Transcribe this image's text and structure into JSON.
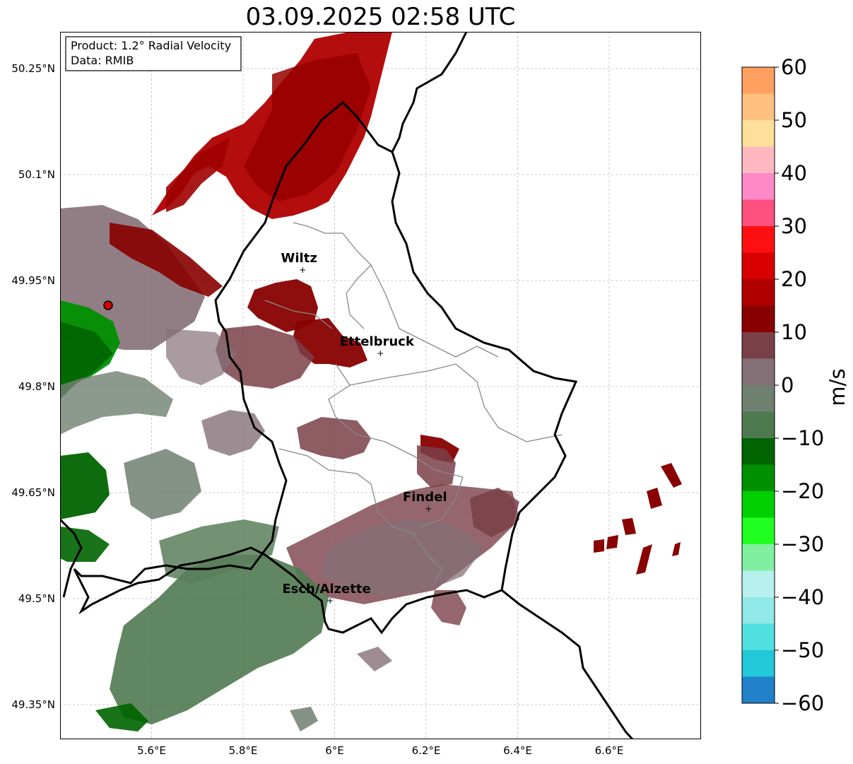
{
  "title": "03.09.2025 02:58 UTC",
  "info": {
    "product": "Product: 1.2° Radial Velocity",
    "data": "Data: RMIB"
  },
  "map": {
    "lat_ticks": [
      {
        "value": 50.25,
        "label": "50.25°N"
      },
      {
        "value": 50.1,
        "label": "50.1°N"
      },
      {
        "value": 49.95,
        "label": "49.95°N"
      },
      {
        "value": 49.8,
        "label": "49.8°N"
      },
      {
        "value": 49.65,
        "label": "49.65°N"
      },
      {
        "value": 49.5,
        "label": "49.5°N"
      },
      {
        "value": 49.35,
        "label": "49.35°N"
      }
    ],
    "lon_ticks": [
      {
        "value": 5.6,
        "label": "5.6°E"
      },
      {
        "value": 5.8,
        "label": "5.8°E"
      },
      {
        "value": 6.0,
        "label": "6°E"
      },
      {
        "value": 6.2,
        "label": "6.2°E"
      },
      {
        "value": 6.4,
        "label": "6.4°E"
      },
      {
        "value": 6.6,
        "label": "6.6°E"
      }
    ],
    "cities": [
      {
        "name": "Wiltz",
        "lon": 5.93,
        "lat": 49.966
      },
      {
        "name": "Ettelbruck",
        "lon": 6.1,
        "lat": 49.848
      },
      {
        "name": "Findel",
        "lon": 6.205,
        "lat": 49.628
      },
      {
        "name": "Esch/Alzette",
        "lon": 5.99,
        "lat": 49.498
      }
    ],
    "radar_site": {
      "lon": 5.505,
      "lat": 49.915,
      "color": "#d40000"
    }
  },
  "colorbar": {
    "unit": "m/s",
    "ticks": [
      {
        "value": 60,
        "label": "60"
      },
      {
        "value": 50,
        "label": "50"
      },
      {
        "value": 40,
        "label": "40"
      },
      {
        "value": 30,
        "label": "30"
      },
      {
        "value": 20,
        "label": "20"
      },
      {
        "value": 10,
        "label": "10"
      },
      {
        "value": 0,
        "label": "0"
      },
      {
        "value": -10,
        "label": "−10"
      },
      {
        "value": -20,
        "label": "−20"
      },
      {
        "value": -30,
        "label": "−30"
      },
      {
        "value": -40,
        "label": "−40"
      },
      {
        "value": -50,
        "label": "−50"
      },
      {
        "value": -60,
        "label": "−60"
      }
    ],
    "stops": [
      {
        "from": 55,
        "to": 60,
        "color": "#ffa060"
      },
      {
        "from": 50,
        "to": 55,
        "color": "#ffc080"
      },
      {
        "from": 45,
        "to": 50,
        "color": "#ffe09a"
      },
      {
        "from": 40,
        "to": 45,
        "color": "#ffb8c0"
      },
      {
        "from": 35,
        "to": 40,
        "color": "#ff88c8"
      },
      {
        "from": 30,
        "to": 35,
        "color": "#ff5080"
      },
      {
        "from": 25,
        "to": 30,
        "color": "#ff1010"
      },
      {
        "from": 20,
        "to": 25,
        "color": "#d80000"
      },
      {
        "from": 15,
        "to": 20,
        "color": "#b00000"
      },
      {
        "from": 10,
        "to": 15,
        "color": "#880000"
      },
      {
        "from": 5,
        "to": 10,
        "color": "#7a4048"
      },
      {
        "from": 0,
        "to": 5,
        "color": "#857078"
      },
      {
        "from": -5,
        "to": 0,
        "color": "#6f8070"
      },
      {
        "from": -10,
        "to": -5,
        "color": "#4f7a50"
      },
      {
        "from": -15,
        "to": -10,
        "color": "#006400"
      },
      {
        "from": -20,
        "to": -15,
        "color": "#009000"
      },
      {
        "from": -25,
        "to": -20,
        "color": "#00d000"
      },
      {
        "from": -30,
        "to": -25,
        "color": "#20ff20"
      },
      {
        "from": -35,
        "to": -30,
        "color": "#80f0a0"
      },
      {
        "from": -40,
        "to": -35,
        "color": "#b8f0f0"
      },
      {
        "from": -45,
        "to": -40,
        "color": "#90e8e8"
      },
      {
        "from": -50,
        "to": -45,
        "color": "#50e0e0"
      },
      {
        "from": -55,
        "to": -50,
        "color": "#20c8d8"
      },
      {
        "from": -60,
        "to": -55,
        "color": "#2080c8"
      }
    ]
  }
}
